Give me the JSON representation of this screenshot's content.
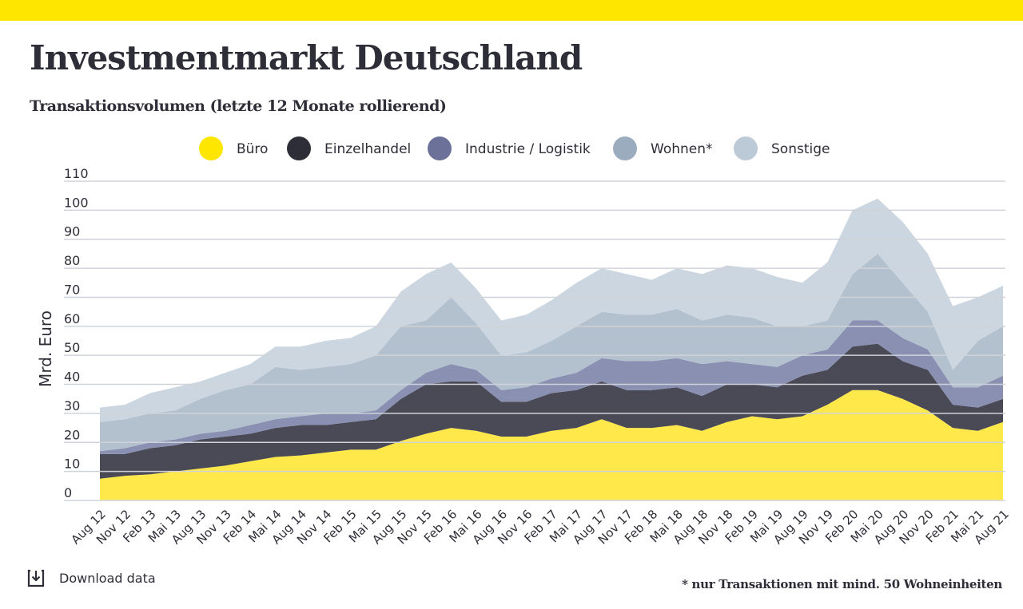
{
  "chart_data": {
    "type": "stacked_area",
    "title": "Investmentmarkt Deutschland",
    "subtitle": "Transaktionsvolumen (letzte 12 Monate rollierend)",
    "y_label": "Mrd. Euro",
    "download": "Download data",
    "footnote": "* nur Transaktionen mit mind. 50 Wohneinheiten",
    "categories": [
      "Aug 12",
      "Nov 12",
      "Feb 13",
      "Mai 13",
      "Aug 13",
      "Nov 13",
      "Feb 14",
      "Mai 14",
      "Aug 14",
      "Nov 14",
      "Feb 15",
      "Mai 15",
      "Aug 15",
      "Nov 15",
      "Feb 16",
      "Mai 16",
      "Aug 16",
      "Nov 16",
      "Feb 17",
      "Mai 17",
      "Aug 17",
      "Nov 17",
      "Feb 18",
      "Mai 18",
      "Aug 18",
      "Nov 18",
      "Feb 19",
      "Mai 19",
      "Aug 19",
      "Nov 19",
      "Feb 20",
      "Mai 20",
      "Aug 20",
      "Nov 20",
      "Feb 21",
      "Mai 21",
      "Aug 21"
    ],
    "series": [
      {
        "name": "Büro",
        "color": "#ffe84a",
        "values": [
          7.5,
          8.5,
          9,
          10,
          11,
          12,
          13.5,
          15,
          15.5,
          16.5,
          17.5,
          17.5,
          20.5,
          23,
          25,
          24,
          22,
          22,
          24,
          25,
          28,
          25,
          25,
          26,
          24,
          27,
          29,
          28,
          29,
          33,
          38,
          38,
          35,
          31,
          25,
          24,
          27
        ]
      },
      {
        "name": "Einzelhandel",
        "color": "#4a4a56",
        "values": [
          8.5,
          7.5,
          9,
          9,
          10,
          10,
          9.5,
          10,
          10.5,
          9.5,
          9.5,
          10.5,
          14.5,
          17,
          16,
          17,
          12,
          12,
          13,
          13,
          13,
          13,
          13,
          13,
          12,
          13,
          11,
          11,
          14,
          12,
          15,
          16,
          13,
          14,
          8,
          8,
          8
        ]
      },
      {
        "name": "Industrie / Logistik",
        "color": "#8a90b2",
        "values": [
          1,
          2,
          2,
          2,
          2,
          2,
          3,
          3,
          3,
          4,
          3,
          3,
          3,
          4,
          6,
          4,
          4,
          5,
          5,
          6,
          8,
          10,
          10,
          10,
          11,
          8,
          7,
          7,
          7,
          7,
          9,
          8,
          8,
          7,
          6,
          7,
          8
        ]
      },
      {
        "name": "Wohnen*",
        "color": "#b3c1cf",
        "values": [
          10,
          10,
          10,
          10,
          12,
          14,
          14,
          18,
          16,
          16,
          17,
          19,
          22,
          18,
          23,
          16,
          12,
          12,
          13,
          16,
          16,
          16,
          16,
          17,
          15,
          16,
          16,
          14,
          10,
          10,
          16,
          23,
          19,
          13,
          6,
          16,
          17
        ]
      },
      {
        "name": "Sonstige",
        "color": "#ccd6e0",
        "values": [
          5,
          5,
          7,
          8,
          6,
          6,
          7,
          7,
          8,
          9,
          9,
          10,
          12,
          16,
          12,
          12,
          12,
          13,
          14,
          15,
          15,
          14,
          12,
          14,
          16,
          17,
          17,
          17,
          15,
          20,
          22,
          19,
          21,
          20,
          22,
          15,
          14
        ]
      }
    ],
    "legend_colors": [
      "#ffe600",
      "#2e2e38",
      "#6b7198",
      "#9bacbf",
      "#bccad7"
    ],
    "ylim": [
      0,
      110
    ],
    "yticks": [
      0,
      10,
      20,
      30,
      40,
      50,
      60,
      70,
      80,
      90,
      100,
      110
    ],
    "grid": true
  }
}
